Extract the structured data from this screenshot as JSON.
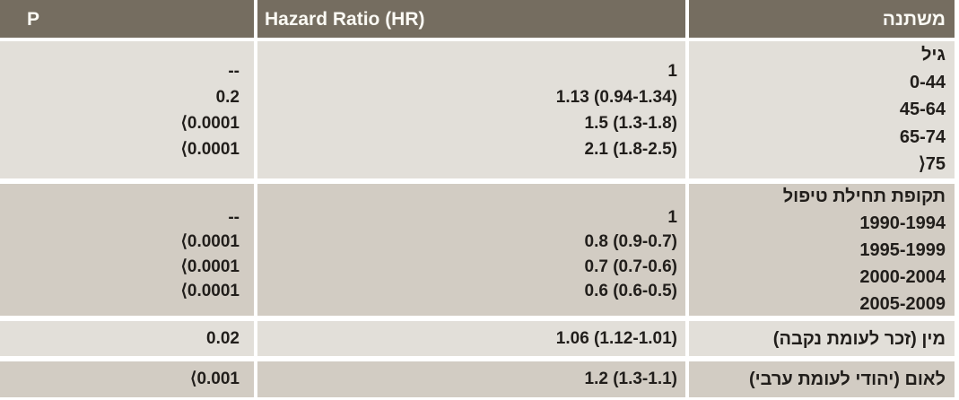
{
  "header": {
    "p_label": "P",
    "hr_label": "Hazard Ratio (HR)",
    "variable_label": "משתנה"
  },
  "groups": [
    {
      "name": "age",
      "labels": [
        "גיל",
        "0-44",
        "45-64",
        "65-74",
        "⟩75"
      ],
      "hr": [
        "1",
        "1.13 (0.94-1.34)",
        "1.5 (1.3-1.8)",
        "2.1 (1.8-2.5)"
      ],
      "p": [
        "--",
        "0.2",
        "⟨0.0001",
        "⟨0.0001"
      ]
    },
    {
      "name": "treatment-start-period",
      "labels": [
        "תקופת תחילת טיפול",
        "1990-1994",
        "1995-1999",
        "2000-2004",
        "2005-2009"
      ],
      "hr": [
        "1",
        "0.8 (0.9-0.7)",
        "0.7 (0.7-0.6)",
        "0.6 (0.6-0.5)"
      ],
      "p": [
        "--",
        "⟨0.0001",
        "⟨0.0001",
        "⟨0.0001"
      ]
    },
    {
      "name": "sex-male-vs-female",
      "labels": [
        "מין (זכר לעומת נקבה)"
      ],
      "hr": [
        "1.06 (1.12-1.01)"
      ],
      "p": [
        "0.02"
      ]
    },
    {
      "name": "nationality-jewish-vs-arab",
      "labels": [
        "לאום (יהודי לעומת ערבי)"
      ],
      "hr": [
        "1.2 (1.3-1.1)"
      ],
      "p": [
        "⟨0.001"
      ]
    }
  ],
  "colors": {
    "header_bg": "#756d60",
    "header_text": "#fbfaf4",
    "band_light": "#e2dfd9",
    "band_dark": "#d2ccc3",
    "body_text": "#211e1b",
    "separator": "#ffffff"
  }
}
